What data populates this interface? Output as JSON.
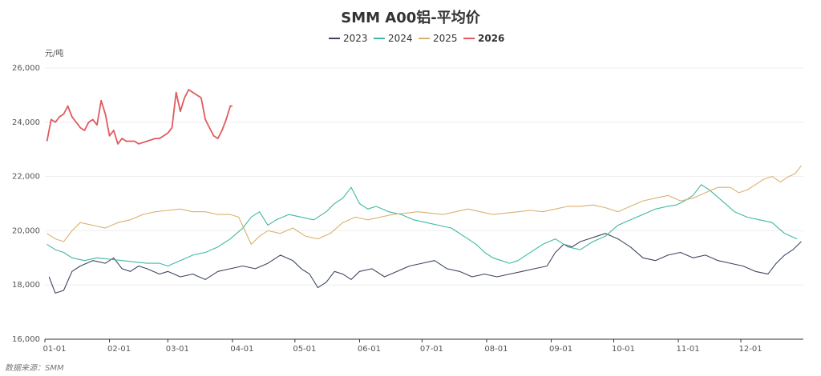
{
  "chart_data": {
    "type": "line",
    "title": "SMM A00铝-平均价",
    "ylabel": "元/吨",
    "source": "数据来源：SMM",
    "ylim": [
      16000,
      26000
    ],
    "yticks": [
      16000,
      18000,
      20000,
      22000,
      24000,
      26000
    ],
    "ytick_labels": [
      "16,000",
      "18,000",
      "20,000",
      "22,000",
      "24,000",
      "26,000"
    ],
    "xlim": [
      1,
      365
    ],
    "xticks": [
      1,
      32,
      60,
      91,
      121,
      152,
      182,
      213,
      244,
      274,
      305,
      335
    ],
    "xtick_labels": [
      "01-01",
      "02-01",
      "03-01",
      "04-01",
      "05-01",
      "06-01",
      "07-01",
      "08-01",
      "09-01",
      "10-01",
      "11-01",
      "12-01"
    ],
    "grid": true,
    "legend_position": "top-center",
    "x_unit": "day of year",
    "series": [
      {
        "name": "2023",
        "color": "#3d4660",
        "bold": false,
        "x": [
          3,
          6,
          10,
          14,
          18,
          24,
          30,
          34,
          38,
          42,
          46,
          50,
          56,
          60,
          66,
          72,
          78,
          84,
          90,
          96,
          102,
          108,
          114,
          120,
          124,
          128,
          132,
          136,
          140,
          144,
          148,
          152,
          158,
          164,
          170,
          176,
          182,
          188,
          194,
          200,
          206,
          212,
          218,
          224,
          230,
          236,
          242,
          246,
          250,
          254,
          258,
          262,
          266,
          270,
          276,
          282,
          288,
          294,
          300,
          306,
          312,
          318,
          324,
          330,
          336,
          342,
          348,
          352,
          356,
          360,
          364
        ],
        "values": [
          18300,
          17700,
          17800,
          18500,
          18700,
          18900,
          18800,
          19000,
          18600,
          18500,
          18700,
          18600,
          18400,
          18500,
          18300,
          18400,
          18200,
          18500,
          18600,
          18700,
          18600,
          18800,
          19100,
          18900,
          18600,
          18400,
          17900,
          18100,
          18500,
          18400,
          18200,
          18500,
          18600,
          18300,
          18500,
          18700,
          18800,
          18900,
          18600,
          18500,
          18300,
          18400,
          18300,
          18400,
          18500,
          18600,
          18700,
          19200,
          19500,
          19400,
          19600,
          19700,
          19800,
          19900,
          19700,
          19400,
          19000,
          18900,
          19100,
          19200,
          19000,
          19100,
          18900,
          18800,
          18700,
          18500,
          18400,
          18800,
          19100,
          19300,
          19600
        ]
      },
      {
        "name": "2024",
        "color": "#3fb8a3",
        "bold": false,
        "x": [
          2,
          6,
          10,
          14,
          20,
          26,
          32,
          38,
          44,
          50,
          56,
          60,
          66,
          72,
          78,
          84,
          90,
          96,
          100,
          104,
          108,
          112,
          118,
          124,
          130,
          136,
          140,
          144,
          148,
          152,
          156,
          160,
          166,
          172,
          178,
          184,
          190,
          196,
          202,
          208,
          212,
          216,
          220,
          224,
          228,
          232,
          236,
          240,
          246,
          252,
          258,
          264,
          270,
          276,
          282,
          288,
          294,
          300,
          304,
          308,
          312,
          316,
          320,
          326,
          332,
          338,
          344,
          350,
          356,
          362
        ],
        "values": [
          19500,
          19300,
          19200,
          19000,
          18900,
          19000,
          18950,
          18900,
          18850,
          18800,
          18800,
          18700,
          18900,
          19100,
          19200,
          19400,
          19700,
          20100,
          20500,
          20700,
          20200,
          20400,
          20600,
          20500,
          20400,
          20700,
          21000,
          21200,
          21600,
          21000,
          20800,
          20900,
          20700,
          20600,
          20400,
          20300,
          20200,
          20100,
          19800,
          19500,
          19200,
          19000,
          18900,
          18800,
          18900,
          19100,
          19300,
          19500,
          19700,
          19400,
          19300,
          19600,
          19800,
          20200,
          20400,
          20600,
          20800,
          20900,
          20950,
          21100,
          21300,
          21700,
          21500,
          21100,
          20700,
          20500,
          20400,
          20300,
          19900,
          19700
        ]
      },
      {
        "name": "2025",
        "color": "#d9b16e",
        "bold": false,
        "x": [
          2,
          6,
          10,
          14,
          18,
          24,
          30,
          36,
          42,
          48,
          54,
          60,
          66,
          72,
          78,
          84,
          90,
          94,
          97,
          100,
          104,
          108,
          114,
          120,
          126,
          132,
          138,
          144,
          150,
          156,
          162,
          168,
          174,
          180,
          186,
          192,
          198,
          204,
          210,
          216,
          222,
          228,
          234,
          240,
          246,
          252,
          258,
          264,
          270,
          276,
          282,
          288,
          294,
          300,
          306,
          312,
          318,
          324,
          330,
          334,
          338,
          342,
          346,
          350,
          354,
          358,
          361,
          363,
          364
        ],
        "values": [
          19900,
          19700,
          19600,
          20000,
          20300,
          20200,
          20100,
          20300,
          20400,
          20600,
          20700,
          20750,
          20800,
          20700,
          20700,
          20600,
          20600,
          20500,
          20000,
          19500,
          19800,
          20000,
          19900,
          20100,
          19800,
          19700,
          19900,
          20300,
          20500,
          20400,
          20500,
          20600,
          20650,
          20700,
          20650,
          20600,
          20700,
          20800,
          20700,
          20600,
          20650,
          20700,
          20750,
          20700,
          20800,
          20900,
          20900,
          20950,
          20850,
          20700,
          20900,
          21100,
          21200,
          21300,
          21100,
          21200,
          21400,
          21600,
          21600,
          21400,
          21500,
          21700,
          21900,
          22000,
          21800,
          22000,
          22100,
          22300,
          22400
        ]
      },
      {
        "name": "2026",
        "color": "#e05a5f",
        "bold": true,
        "x": [
          2,
          4,
          6,
          8,
          10,
          12,
          14,
          16,
          18,
          20,
          22,
          24,
          26,
          28,
          30,
          32,
          34,
          36,
          38,
          40,
          42,
          44,
          46,
          48,
          50,
          52,
          54,
          56,
          58,
          60,
          62,
          64,
          66,
          68,
          70,
          72,
          74,
          76,
          78,
          80,
          82,
          84,
          86,
          88,
          90,
          91
        ],
        "values": [
          23300,
          24100,
          24000,
          24200,
          24300,
          24600,
          24200,
          24000,
          23800,
          23700,
          24000,
          24100,
          23900,
          24800,
          24300,
          23500,
          23700,
          23200,
          23400,
          23300,
          23300,
          23300,
          23200,
          23250,
          23300,
          23350,
          23400,
          23400,
          23500,
          23600,
          23800,
          25100,
          24400,
          24900,
          25200,
          25100,
          25000,
          24900,
          24100,
          23800,
          23500,
          23400,
          23700,
          24100,
          24600,
          24600
        ]
      }
    ]
  }
}
